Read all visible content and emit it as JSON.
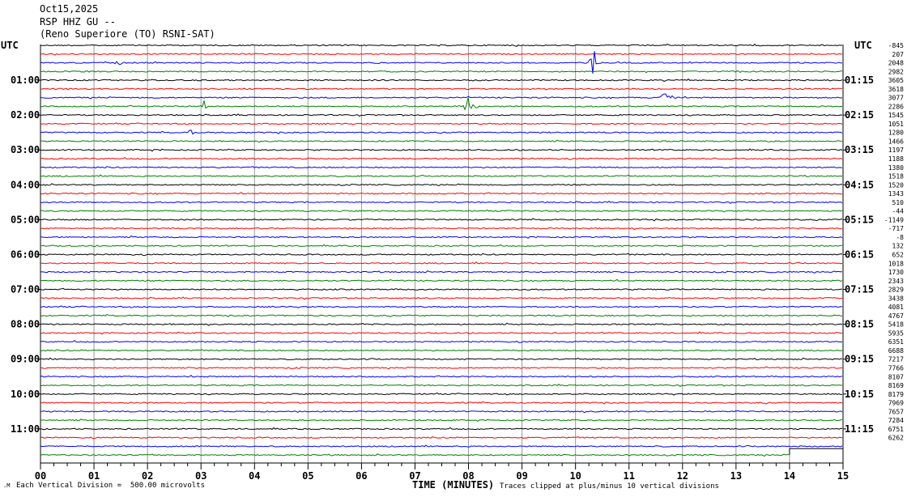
{
  "header": {
    "date": "Oct15,2025",
    "channel": "RSP HHZ GU --",
    "station": "(Reno Superiore (TO) RSNI-SAT)"
  },
  "left_axis": {
    "title": "UTC",
    "labels": [
      "01:00",
      "02:00",
      "03:00",
      "04:00",
      "05:00",
      "06:00",
      "07:00",
      "08:00",
      "09:00",
      "10:00",
      "11:00"
    ]
  },
  "right_axis": {
    "title": "UTC",
    "labels": [
      "01:15",
      "02:15",
      "03:15",
      "04:15",
      "05:15",
      "06:15",
      "07:15",
      "08:15",
      "09:15",
      "10:15",
      "11:15"
    ]
  },
  "footer": {
    "scale_note": "Each Vertical Division =  500.00 microvolts",
    "xlabel": "TIME (MINUTES)",
    "clip_note": "Traces clipped at plus/minus 10 vertical divisions"
  },
  "chart_data": {
    "type": "line",
    "title": "RSP HHZ GU --",
    "xlabel": "TIME (MINUTES)",
    "ylabel": "UTC",
    "x_ticks": [
      "00",
      "01",
      "02",
      "03",
      "04",
      "05",
      "06",
      "07",
      "08",
      "09",
      "10",
      "11",
      "12",
      "13",
      "14",
      "15"
    ],
    "xlim": [
      0,
      15
    ],
    "grid": true,
    "trace_colors": [
      "#000000",
      "#ff0000",
      "#0000ff",
      "#008000"
    ],
    "trace_count": 48,
    "last_trace_end_minute": 14,
    "right_values": [
      "-845",
      "207",
      "2048",
      "2982",
      "3605",
      "3618",
      "3077",
      "2286",
      "1545",
      "1051",
      "1280",
      "1466",
      "1197",
      "1188",
      "1380",
      "1518",
      "1520",
      "1343",
      "510",
      "-44",
      "-1149",
      "-717",
      "-8",
      "132",
      "652",
      "1018",
      "1730",
      "2343",
      "2829",
      "3438",
      "4081",
      "4767",
      "5418",
      "5935",
      "6351",
      "6688",
      "7217",
      "7766",
      "8107",
      "8169",
      "8179",
      "7969",
      "7657",
      "7284",
      "6751",
      "6262"
    ],
    "events": [
      {
        "trace": 2,
        "minute": 1.45,
        "amplitude": 6
      },
      {
        "trace": 2,
        "minute": 10.33,
        "amplitude": 20
      },
      {
        "trace": 6,
        "minute": 11.65,
        "amplitude": 8
      },
      {
        "trace": 6,
        "minute": 11.8,
        "amplitude": 5
      },
      {
        "trace": 7,
        "minute": 3.05,
        "amplitude": 8
      },
      {
        "trace": 7,
        "minute": 7.98,
        "amplitude": 14
      },
      {
        "trace": 7,
        "minute": 8.1,
        "amplitude": 9
      },
      {
        "trace": 10,
        "minute": 2.8,
        "amplitude": 4
      }
    ]
  }
}
